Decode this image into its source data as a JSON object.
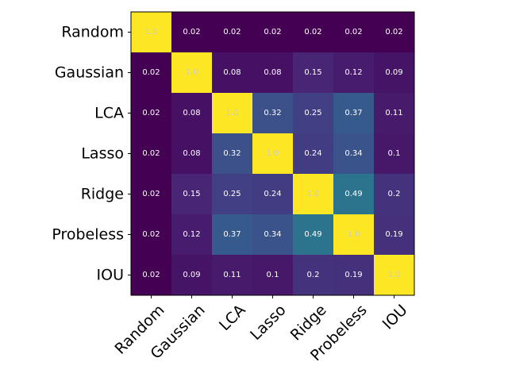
{
  "chart_data": {
    "type": "heatmap",
    "title": "",
    "xlabel": "",
    "ylabel": "",
    "row_labels": [
      "Random",
      "Gaussian",
      "LCA",
      "Lasso",
      "Ridge",
      "Probeless",
      "IOU"
    ],
    "col_labels": [
      "Random",
      "Gaussian",
      "LCA",
      "Lasso",
      "Ridge",
      "Probeless",
      "IOU"
    ],
    "values": [
      [
        1.0,
        0.02,
        0.02,
        0.02,
        0.02,
        0.02,
        0.02
      ],
      [
        0.02,
        1.0,
        0.08,
        0.08,
        0.15,
        0.12,
        0.09
      ],
      [
        0.02,
        0.08,
        1.0,
        0.32,
        0.25,
        0.37,
        0.11
      ],
      [
        0.02,
        0.08,
        0.32,
        1.0,
        0.24,
        0.34,
        0.1
      ],
      [
        0.02,
        0.15,
        0.25,
        0.24,
        1.0,
        0.49,
        0.2
      ],
      [
        0.02,
        0.12,
        0.37,
        0.34,
        0.49,
        1.0,
        0.19
      ],
      [
        0.02,
        0.09,
        0.11,
        0.1,
        0.2,
        0.19,
        1.0
      ]
    ],
    "cell_text": [
      [
        "1.0",
        "0.02",
        "0.02",
        "0.02",
        "0.02",
        "0.02",
        "0.02"
      ],
      [
        "0.02",
        "1.0",
        "0.08",
        "0.08",
        "0.15",
        "0.12",
        "0.09"
      ],
      [
        "0.02",
        "0.08",
        "1.0",
        "0.32",
        "0.25",
        "0.37",
        "0.11"
      ],
      [
        "0.02",
        "0.08",
        "0.32",
        "1.0",
        "0.24",
        "0.34",
        "0.1"
      ],
      [
        "0.02",
        "0.15",
        "0.25",
        "0.24",
        "1.0",
        "0.49",
        "0.2"
      ],
      [
        "0.02",
        "0.12",
        "0.37",
        "0.34",
        "0.49",
        "1.0",
        "0.19"
      ],
      [
        "0.02",
        "0.09",
        "0.11",
        "0.1",
        "0.2",
        "0.19",
        "1.0"
      ]
    ],
    "colormap": "viridis",
    "vmin": 0.02,
    "vmax": 1.0,
    "grid": false
  }
}
